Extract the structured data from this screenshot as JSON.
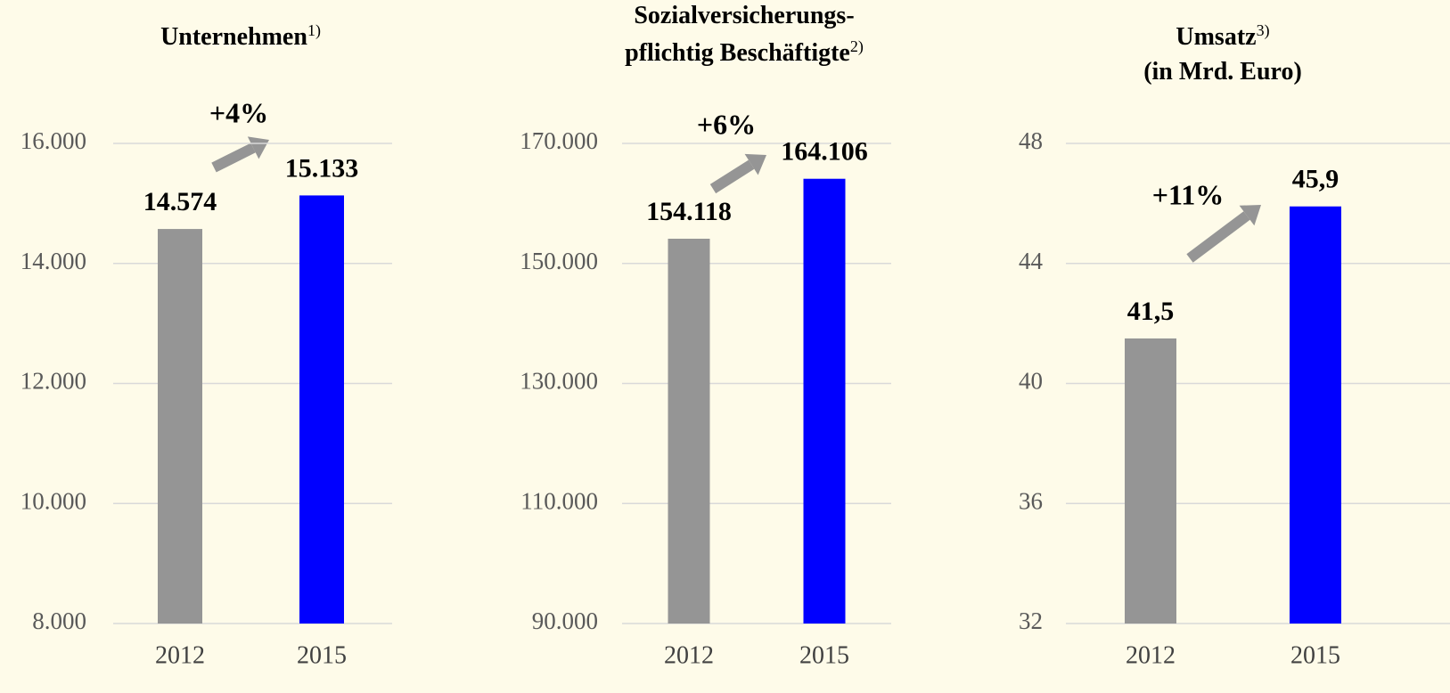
{
  "chart_data": [
    {
      "type": "bar",
      "title": [
        {
          "text": "Unternehmen",
          "sup": "1)"
        }
      ],
      "annotation": "+4%",
      "categories": [
        "2012",
        "2015"
      ],
      "values": [
        14574,
        15133
      ],
      "value_labels": [
        "14.574",
        "15.133"
      ],
      "colors": [
        "#959595",
        "#0000ff"
      ],
      "ylim": [
        8000,
        16000
      ],
      "yticks": [
        {
          "value": 8000,
          "label": "8.000"
        },
        {
          "value": 10000,
          "label": "10.000"
        },
        {
          "value": 12000,
          "label": "12.000"
        },
        {
          "value": 14000,
          "label": "14.000"
        },
        {
          "value": 16000,
          "label": "16.000"
        }
      ],
      "grid": true
    },
    {
      "type": "bar",
      "title": [
        {
          "text": "Sozialversicherungs-"
        },
        {
          "text": "pflichtig Beschäftigte",
          "sup": "2)"
        }
      ],
      "annotation": "+6%",
      "categories": [
        "2012",
        "2015"
      ],
      "values": [
        154118,
        164106
      ],
      "value_labels": [
        "154.118",
        "164.106"
      ],
      "colors": [
        "#959595",
        "#0000ff"
      ],
      "ylim": [
        90000,
        170000
      ],
      "yticks": [
        {
          "value": 90000,
          "label": "90.000"
        },
        {
          "value": 110000,
          "label": "110.000"
        },
        {
          "value": 130000,
          "label": "130.000"
        },
        {
          "value": 150000,
          "label": "150.000"
        },
        {
          "value": 170000,
          "label": "170.000"
        }
      ],
      "grid": true
    },
    {
      "type": "bar",
      "title": [
        {
          "text": "Umsatz",
          "sup": "3)"
        },
        {
          "text": "(in Mrd. Euro)"
        }
      ],
      "annotation": "+11%",
      "categories": [
        "2012",
        "2015"
      ],
      "values": [
        41.5,
        45.9
      ],
      "value_labels": [
        "41,5",
        "45,9"
      ],
      "colors": [
        "#959595",
        "#0000ff"
      ],
      "ylim": [
        32,
        48
      ],
      "yticks": [
        32,
        36,
        40,
        44,
        48
      ],
      "grid": true
    }
  ]
}
